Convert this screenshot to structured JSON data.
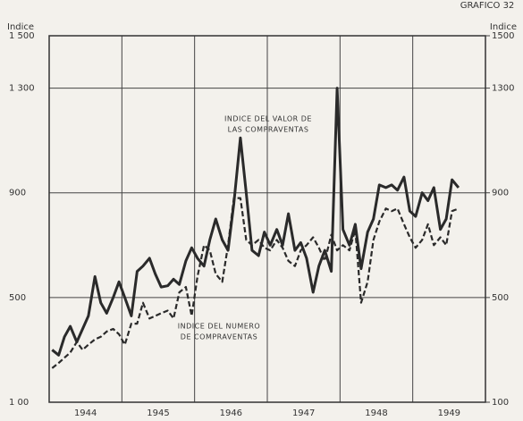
{
  "chart_data": {
    "type": "line",
    "title": "GRAFICO 32",
    "ylabel": "Indice",
    "y2label": "Indice",
    "annotations": [
      [
        "INDICE DEL VALOR DE",
        "LAS COMPRAVENTAS"
      ],
      [
        "INDICE DEL NUMERO",
        "DE COMPRAVENTAS"
      ]
    ],
    "xlim": [
      1944,
      1950
    ],
    "xticks": [
      {
        "value": 1944.5,
        "label": "1944"
      },
      {
        "value": 1945.5,
        "label": "1945"
      },
      {
        "value": 1946.5,
        "label": "1946"
      },
      {
        "value": 1947.5,
        "label": "1947"
      },
      {
        "value": 1948.5,
        "label": "1948"
      },
      {
        "value": 1949.5,
        "label": "1949"
      }
    ],
    "xgrid": [
      1945,
      1946,
      1947,
      1948,
      1949
    ],
    "ylim": [
      100,
      1500
    ],
    "yticks": [
      {
        "value": 100,
        "label": "1 00"
      },
      500,
      900,
      {
        "value": 1300,
        "label": "1 300"
      },
      {
        "value": 1500,
        "label": "1 500"
      }
    ],
    "y2lim": [
      100,
      1500
    ],
    "y2ticks": [
      100,
      500,
      900,
      1300,
      1500
    ],
    "grid": true,
    "x": [
      1944.04,
      1944.13,
      1944.21,
      1944.29,
      1944.38,
      1944.46,
      1944.54,
      1944.63,
      1944.71,
      1944.79,
      1944.88,
      1944.96,
      1945.04,
      1945.13,
      1945.21,
      1945.29,
      1945.38,
      1945.46,
      1945.54,
      1945.63,
      1945.71,
      1945.79,
      1945.88,
      1945.96,
      1946.04,
      1946.13,
      1946.21,
      1946.29,
      1946.38,
      1946.46,
      1946.54,
      1946.63,
      1946.71,
      1946.79,
      1946.88,
      1946.96,
      1947.04,
      1947.13,
      1947.21,
      1947.29,
      1947.38,
      1947.46,
      1947.54,
      1947.63,
      1947.71,
      1947.79,
      1947.88,
      1947.96,
      1948.04,
      1948.13,
      1948.21,
      1948.29,
      1948.38,
      1948.46,
      1948.54,
      1948.63,
      1948.71,
      1948.79,
      1948.88,
      1948.96,
      1949.04,
      1949.13,
      1949.21,
      1949.29,
      1949.38,
      1949.46,
      1949.54,
      1949.63
    ],
    "series": [
      {
        "color": "#2a2a2a",
        "dash": false,
        "values": [
          300,
          280,
          350,
          390,
          330,
          380,
          430,
          580,
          480,
          440,
          500,
          560,
          500,
          430,
          600,
          620,
          650,
          590,
          540,
          545,
          570,
          550,
          640,
          690,
          650,
          620,
          720,
          800,
          720,
          680,
          860,
          1110,
          900,
          680,
          660,
          750,
          700,
          760,
          700,
          820,
          680,
          710,
          650,
          520,
          620,
          680,
          600,
          1300,
          760,
          700,
          780,
          610,
          750,
          800,
          930,
          920,
          930,
          910,
          960,
          830,
          810,
          900,
          870,
          920,
          760,
          800,
          950,
          920
        ]
      },
      {
        "color": "#2a2a2a",
        "dash": true,
        "values": [
          230,
          250,
          270,
          290,
          330,
          300,
          320,
          340,
          350,
          370,
          380,
          360,
          320,
          400,
          400,
          480,
          420,
          430,
          440,
          450,
          420,
          520,
          540,
          430,
          580,
          700,
          680,
          590,
          560,
          700,
          880,
          880,
          720,
          700,
          720,
          690,
          680,
          720,
          690,
          640,
          620,
          680,
          700,
          730,
          690,
          640,
          740,
          680,
          700,
          680,
          760,
          480,
          560,
          720,
          790,
          840,
          830,
          840,
          780,
          730,
          690,
          720,
          780,
          700,
          730,
          700,
          830,
          840
        ]
      }
    ]
  }
}
